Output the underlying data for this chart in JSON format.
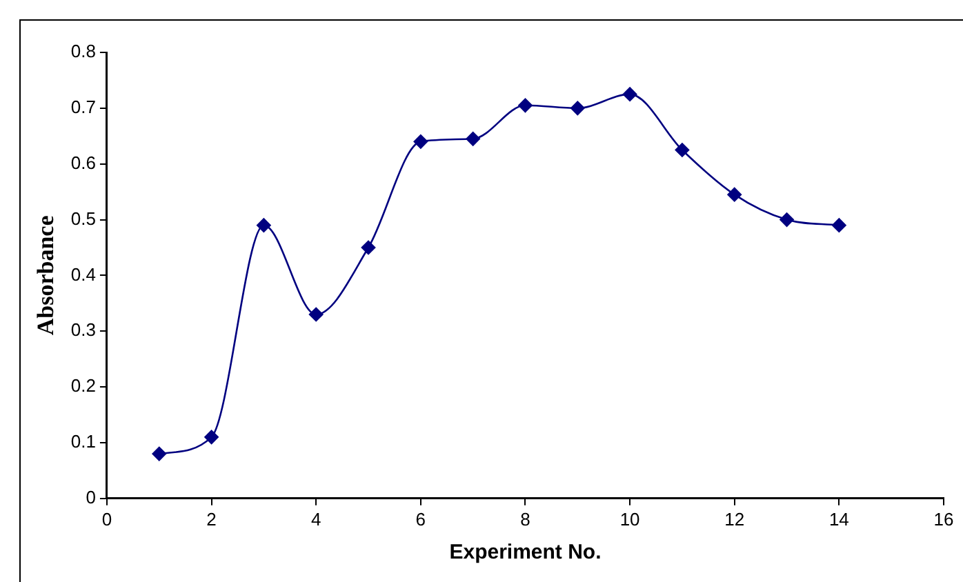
{
  "chart_data": {
    "type": "line",
    "xlabel": "Experiment No.",
    "ylabel": "Absorbance",
    "x": [
      1,
      2,
      3,
      4,
      5,
      6,
      7,
      8,
      9,
      10,
      11,
      12,
      13,
      14
    ],
    "series": [
      {
        "color": "#000080",
        "values": [
          0.08,
          0.11,
          0.49,
          0.33,
          0.45,
          0.64,
          0.645,
          0.705,
          0.7,
          0.725,
          0.625,
          0.545,
          0.5,
          0.49
        ]
      }
    ],
    "xlim": [
      0,
      16
    ],
    "xticks": [
      0,
      2,
      4,
      6,
      8,
      10,
      12,
      14,
      16
    ],
    "ylim": [
      0,
      0.8
    ],
    "yticks": [
      0,
      0.1,
      0.2,
      0.3,
      0.4,
      0.5,
      0.6,
      0.7,
      0.8
    ],
    "grid": false,
    "legend": false,
    "marker": "diamond",
    "line_style": "solid"
  }
}
